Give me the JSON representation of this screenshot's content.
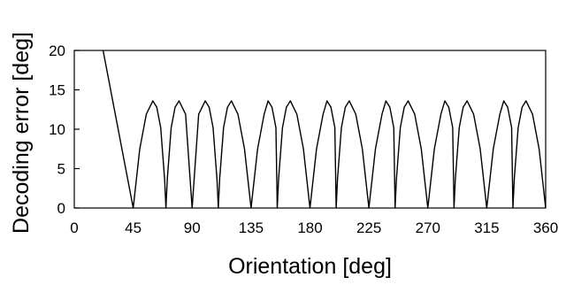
{
  "chart_data": {
    "type": "line",
    "title": "",
    "xlabel": "Orientation [deg]",
    "ylabel": "Decoding error [deg]",
    "xlim": [
      0,
      360
    ],
    "ylim": [
      0,
      20
    ],
    "xticks": [
      0,
      45,
      90,
      135,
      180,
      225,
      270,
      315,
      360
    ],
    "yticks": [
      0,
      5,
      10,
      15,
      20
    ],
    "grid": false,
    "legend": "none",
    "line_color": "#000000",
    "series": [
      {
        "x": [
          22,
          45,
          50,
          55,
          60,
          63,
          66,
          69,
          70,
          71,
          74,
          77,
          80,
          85,
          90,
          95,
          100,
          103,
          106,
          109,
          110,
          111,
          114,
          117,
          120,
          125,
          130,
          135,
          140,
          145,
          148,
          151,
          154,
          155,
          156,
          159,
          162,
          165,
          170,
          175,
          180,
          185,
          190,
          193,
          196,
          199,
          200,
          201,
          204,
          207,
          210,
          215,
          220,
          225,
          230,
          235,
          238,
          241,
          244,
          245,
          246,
          249,
          252,
          255,
          260,
          265,
          270,
          275,
          280,
          283,
          286,
          289,
          290,
          291,
          294,
          297,
          300,
          305,
          310,
          315,
          320,
          325,
          328,
          331,
          334,
          335,
          336,
          339,
          342,
          345,
          350,
          355,
          360
        ],
        "y": [
          20,
          0,
          7.5,
          11.9,
          13.6,
          12.8,
          10.2,
          3.6,
          0,
          3.6,
          10.2,
          12.8,
          13.6,
          11.9,
          0,
          11.9,
          13.6,
          12.8,
          10.2,
          3.6,
          0,
          3.6,
          10.2,
          12.8,
          13.6,
          11.9,
          7.5,
          0,
          7.5,
          11.9,
          13.6,
          12.8,
          10.2,
          0,
          3.6,
          10.2,
          12.8,
          13.6,
          11.9,
          7.5,
          0,
          7.5,
          11.9,
          13.6,
          12.8,
          10.2,
          0,
          3.6,
          10.2,
          12.8,
          13.6,
          11.9,
          7.5,
          0,
          7.5,
          11.9,
          13.6,
          12.8,
          10.2,
          0,
          3.6,
          10.2,
          12.8,
          13.6,
          11.9,
          7.5,
          0,
          7.5,
          11.9,
          13.6,
          12.8,
          10.2,
          0,
          3.6,
          10.2,
          12.8,
          13.6,
          11.9,
          7.5,
          0,
          7.5,
          11.9,
          13.6,
          12.8,
          10.2,
          0,
          3.6,
          10.2,
          12.8,
          13.6,
          11.9,
          7.5,
          0
        ]
      }
    ]
  }
}
